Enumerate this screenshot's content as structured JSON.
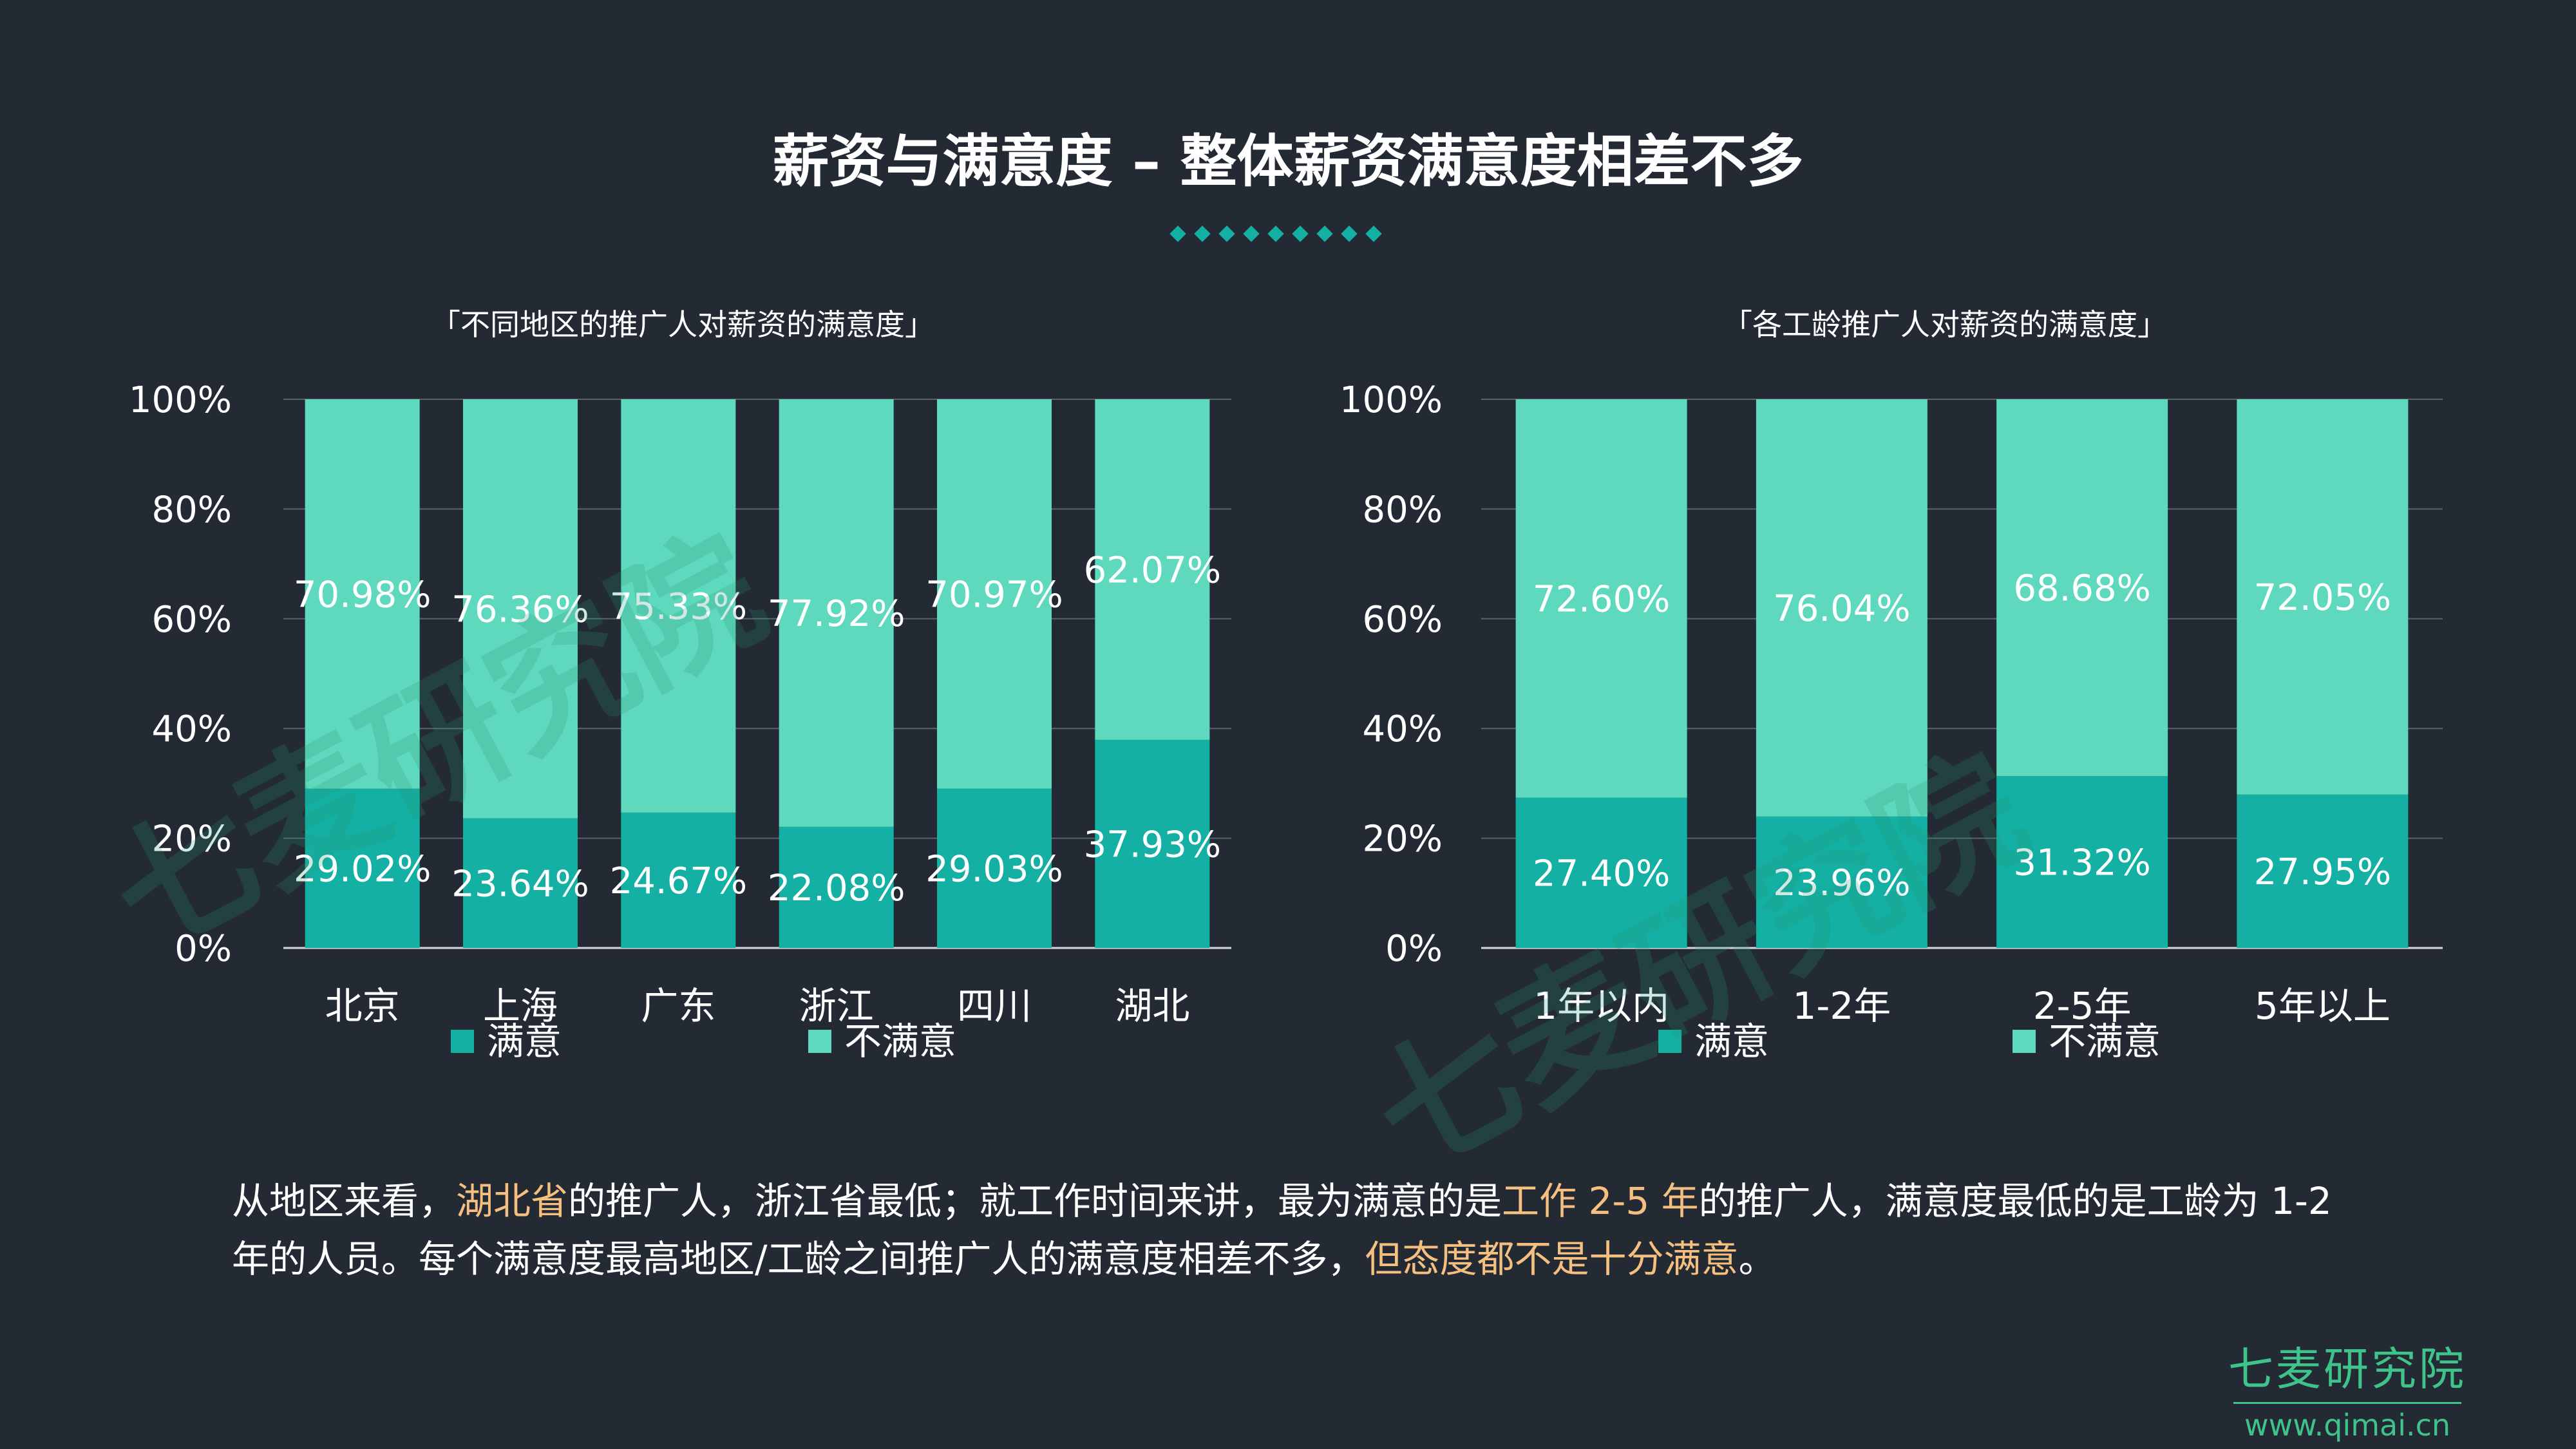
{
  "page": {
    "title": "薪资与满意度 – 整体薪资满意度相差不多",
    "description": {
      "p1": "从地区来看，",
      "h1": "湖北省",
      "p2": "的推广人，浙江省最低；就工作时间来讲，最为满意的是",
      "h2": "工作 2-5 年",
      "p3": "的推广人，满意度最低的是工龄为 1-2 年的人员。每个满意度最高地区/工龄之间推广人的满意度相差不多，",
      "h3": "但态度都不是十分满意",
      "p4": "。"
    },
    "brand": {
      "name": "七麦研究院",
      "url": "www.qimai.cn"
    },
    "watermark": "七麦研究院",
    "colors": {
      "satisfied": "#13b0a3",
      "unsatisfied": "#5fd9bd",
      "highlight": "#f5c07f",
      "background": "#232a34"
    }
  },
  "chart_data": [
    {
      "type": "bar",
      "stacked": true,
      "title": "「不同地区的推广人对薪资的满意度」",
      "categories": [
        "北京",
        "上海",
        "广东",
        "浙江",
        "四川",
        "湖北"
      ],
      "series": [
        {
          "name": "满意",
          "values": [
            29.02,
            23.64,
            24.67,
            22.08,
            29.03,
            37.93
          ]
        },
        {
          "name": "不满意",
          "values": [
            70.98,
            76.36,
            75.33,
            77.92,
            70.97,
            62.07
          ]
        }
      ],
      "ylim": [
        0,
        100
      ],
      "yticks": [
        "0%",
        "20%",
        "40%",
        "60%",
        "80%",
        "100%"
      ],
      "legend": "bottom",
      "grid": true
    },
    {
      "type": "bar",
      "stacked": true,
      "title": "「各工龄推广人对薪资的满意度」",
      "categories": [
        "1年以内",
        "1-2年",
        "2-5年",
        "5年以上"
      ],
      "series": [
        {
          "name": "满意",
          "values": [
            27.4,
            23.96,
            31.32,
            27.95
          ]
        },
        {
          "name": "不满意",
          "values": [
            72.6,
            76.04,
            68.68,
            72.05
          ]
        }
      ],
      "ylim": [
        0,
        100
      ],
      "yticks": [
        "0%",
        "20%",
        "40%",
        "60%",
        "80%",
        "100%"
      ],
      "legend": "bottom",
      "grid": true
    }
  ]
}
